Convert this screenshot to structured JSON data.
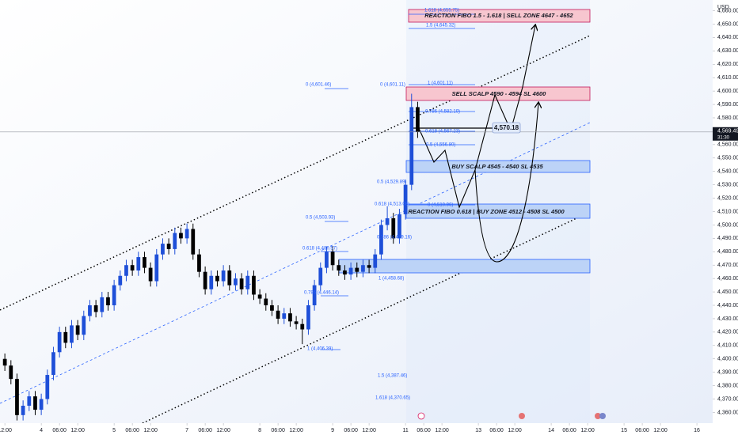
{
  "chart_data": {
    "type": "candlestick",
    "currency": "USD",
    "last_price_label": "4,569.49",
    "countdown": "31:30",
    "up_color": "#1e4fd8",
    "down_color": "#000000",
    "x": [
      -12,
      -10,
      -8,
      -6,
      -4,
      -2,
      0,
      2,
      4,
      6,
      8,
      10,
      12,
      14,
      16,
      18,
      20,
      22,
      24,
      26,
      28,
      30,
      32,
      34,
      36,
      38,
      40,
      42,
      44,
      46,
      48,
      50,
      52,
      54,
      56,
      58,
      60,
      62,
      64,
      66,
      68,
      70,
      72,
      74,
      76,
      78,
      80,
      82,
      84,
      86,
      88,
      90,
      92,
      94,
      96,
      98,
      100,
      102,
      104,
      106,
      108,
      110,
      112,
      114,
      116,
      118,
      120,
      122,
      124
    ],
    "open": [
      4400,
      4395,
      4385,
      4358,
      4365,
      4372,
      4362,
      4370,
      4388,
      4405,
      4420,
      4412,
      4425,
      4418,
      4432,
      4440,
      4435,
      4446,
      4440,
      4455,
      4462,
      4470,
      4466,
      4476,
      4468,
      4458,
      4478,
      4486,
      4482,
      4494,
      4490,
      4497,
      4478,
      4465,
      4452,
      4462,
      4458,
      4466,
      4455,
      4460,
      4452,
      4462,
      4448,
      4445,
      4440,
      4436,
      4430,
      4434,
      4428,
      4426,
      4422,
      4440,
      4455,
      4468,
      4480,
      4470,
      4466,
      4463,
      4468,
      4465,
      4470,
      4468,
      4478,
      4500,
      4505,
      4490,
      4508,
      4530,
      4588
    ],
    "high": [
      4404,
      4399,
      4389,
      4369,
      4376,
      4376,
      4374,
      4392,
      4409,
      4424,
      4424,
      4429,
      4429,
      4436,
      4444,
      4444,
      4450,
      4450,
      4459,
      4466,
      4474,
      4474,
      4480,
      4480,
      4472,
      4482,
      4490,
      4490,
      4498,
      4498,
      4501,
      4501,
      4482,
      4469,
      4466,
      4466,
      4470,
      4470,
      4464,
      4464,
      4466,
      4466,
      4452,
      4449,
      4444,
      4440,
      4438,
      4438,
      4432,
      4430,
      4444,
      4459,
      4472,
      4484,
      4484,
      4474,
      4470,
      4472,
      4472,
      4474,
      4474,
      4482,
      4504,
      4514,
      4509,
      4512,
      4534,
      4598,
      4592
    ],
    "low": [
      4391,
      4381,
      4354,
      4354,
      4361,
      4358,
      4358,
      4366,
      4384,
      4401,
      4408,
      4408,
      4414,
      4414,
      4428,
      4431,
      4431,
      4436,
      4436,
      4451,
      4458,
      4462,
      4462,
      4464,
      4454,
      4454,
      4474,
      4478,
      4478,
      4486,
      4486,
      4474,
      4461,
      4448,
      4448,
      4454,
      4454,
      4451,
      4451,
      4448,
      4448,
      4444,
      4441,
      4436,
      4432,
      4426,
      4426,
      4424,
      4422,
      4411,
      4418,
      4436,
      4451,
      4464,
      4466,
      4462,
      4459,
      4459,
      4461,
      4461,
      4464,
      4464,
      4474,
      4496,
      4486,
      4486,
      4504,
      4526,
      4565
    ],
    "close": [
      4395,
      4385,
      4358,
      4365,
      4372,
      4362,
      4370,
      4388,
      4405,
      4420,
      4412,
      4425,
      4418,
      4432,
      4440,
      4435,
      4446,
      4440,
      4455,
      4462,
      4470,
      4466,
      4476,
      4468,
      4458,
      4478,
      4486,
      4482,
      4494,
      4490,
      4497,
      4478,
      4465,
      4452,
      4462,
      4458,
      4466,
      4455,
      4460,
      4452,
      4462,
      4448,
      4445,
      4440,
      4436,
      4430,
      4434,
      4428,
      4426,
      4422,
      4440,
      4455,
      4468,
      4480,
      4470,
      4466,
      4463,
      4468,
      4465,
      4470,
      4468,
      4478,
      4500,
      4505,
      4490,
      4508,
      4530,
      4588,
      4569.49
    ],
    "xlim": [
      -13.6,
      221.2
    ],
    "xticks": [
      {
        "value": -12,
        "label": "12:00"
      },
      {
        "value": 0,
        "label": "4"
      },
      {
        "value": 6,
        "label": "06:00"
      },
      {
        "value": 12,
        "label": "12:00"
      },
      {
        "value": 24,
        "label": "5"
      },
      {
        "value": 30,
        "label": "06:00"
      },
      {
        "value": 36,
        "label": "12:00"
      },
      {
        "value": 48,
        "label": "7"
      },
      {
        "value": 54,
        "label": "06:00"
      },
      {
        "value": 60,
        "label": "12:00"
      },
      {
        "value": 72,
        "label": "8"
      },
      {
        "value": 78,
        "label": "06:00"
      },
      {
        "value": 84,
        "label": "12:00"
      },
      {
        "value": 96,
        "label": "9"
      },
      {
        "value": 102,
        "label": "06:00"
      },
      {
        "value": 108,
        "label": "12:00"
      },
      {
        "value": 120,
        "label": "11"
      },
      {
        "value": 126,
        "label": "06:00"
      },
      {
        "value": 132,
        "label": "12:00"
      },
      {
        "value": 144,
        "label": "13"
      },
      {
        "value": 150,
        "label": "06:00"
      },
      {
        "value": 156,
        "label": "12:00"
      },
      {
        "value": 168,
        "label": "14"
      },
      {
        "value": 174,
        "label": "06:00"
      },
      {
        "value": 180,
        "label": "12:00"
      },
      {
        "value": 192,
        "label": "15"
      },
      {
        "value": 198,
        "label": "06:00"
      },
      {
        "value": 204,
        "label": "12:00"
      },
      {
        "value": 216,
        "label": "16"
      }
    ],
    "ylim": [
      4352,
      4668
    ],
    "yticks": [
      {
        "value": 4360,
        "label": "4,360.00"
      },
      {
        "value": 4370,
        "label": "4,370.00"
      },
      {
        "value": 4380,
        "label": "4,380.00"
      },
      {
        "value": 4390,
        "label": "4,390.00"
      },
      {
        "value": 4400,
        "label": "4,400.00"
      },
      {
        "value": 4410,
        "label": "4,410.00"
      },
      {
        "value": 4420,
        "label": "4,420.00"
      },
      {
        "value": 4430,
        "label": "4,430.00"
      },
      {
        "value": 4440,
        "label": "4,440.00"
      },
      {
        "value": 4450,
        "label": "4,450.00"
      },
      {
        "value": 4460,
        "label": "4,460.00"
      },
      {
        "value": 4470,
        "label": "4,470.00"
      },
      {
        "value": 4480,
        "label": "4,480.00"
      },
      {
        "value": 4490,
        "label": "4,490.00"
      },
      {
        "value": 4500,
        "label": "4,500.00"
      },
      {
        "value": 4510,
        "label": "4,510.00"
      },
      {
        "value": 4520,
        "label": "4,520.00"
      },
      {
        "value": 4530,
        "label": "4,530.00"
      },
      {
        "value": 4540,
        "label": "4,540.00"
      },
      {
        "value": 4550,
        "label": "4,550.00"
      },
      {
        "value": 4560,
        "label": "4,560.00"
      },
      {
        "value": 4570,
        "label": "4,570.00"
      },
      {
        "value": 4580,
        "label": "4,580.00"
      },
      {
        "value": 4590,
        "label": "4,590.00"
      },
      {
        "value": 4600,
        "label": "4,600.00"
      },
      {
        "value": 4610,
        "label": "4,610.00"
      },
      {
        "value": 4620,
        "label": "4,620.00"
      },
      {
        "value": 4630,
        "label": "4,630.00"
      },
      {
        "value": 4640,
        "label": "4,640.00"
      },
      {
        "value": 4650,
        "label": "4,650.00"
      },
      {
        "value": 4660,
        "label": "4,660.00"
      }
    ],
    "annotations": [
      "REACTION FIBO 1.5 - 1.618 | SELL ZONE 4647 - 4652",
      "SELL SCALP 4590 - 4594 SL 4600",
      "BUY SCALP 4545 - 4540 SL 4535",
      "REACTION FIBO 0.618 | BUY ZONE  4512 - 4508 SL 4500",
      "4,570.18"
    ],
    "fib_labels": [
      "1.618 (4,655.75)",
      "1.5 (4,645.32)",
      "1 (4,601.11)",
      "0.786 (4,582.19)",
      "0.618 (4,567.23)",
      "0.5 (4,556.80)",
      "0 (4,510.96)",
      "0 (4,601.46)",
      "0.5 (4,503.93)",
      "0.618 (4,480.57)",
      "0.786 (4,446.14)",
      "1 (4,406.39)",
      "1.5 (4,387.46)",
      "1.618 (4,370.65)",
      "0 (4,601.11)",
      "0.5 (4,529.89)",
      "0.618 (4,513.08)",
      "0.786 (4,489.16)",
      "1 (4,458.68)"
    ]
  }
}
